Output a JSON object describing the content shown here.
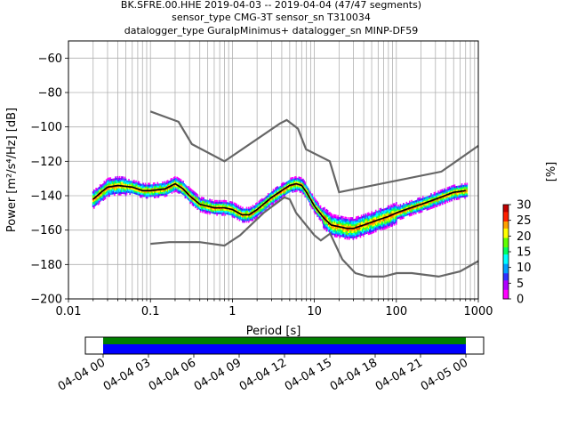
{
  "chart_data": {
    "type": "line",
    "title_lines": [
      "BK.SFRE.00.HHE   2019-04-03 -- 2019-04-04  (47/47 segments)",
      "sensor_type CMG-3T sensor_sn T310034",
      "datalogger_type GuralpMinimus+ datalogger_sn MINP-DF59"
    ],
    "xlabel": "Period [s]",
    "ylabel": "Power [m²/s⁴/Hz] [dB]",
    "x_scale": "log",
    "xlim": [
      0.01,
      1000
    ],
    "ylim": [
      -200,
      -50
    ],
    "x_ticks": [
      0.01,
      0.1,
      1,
      10,
      100,
      1000
    ],
    "x_tick_labels": [
      "0.01",
      "0.1",
      "1",
      "10",
      "100",
      "1000"
    ],
    "y_ticks": [
      -200,
      -180,
      -160,
      -140,
      -120,
      -100,
      -80,
      -60
    ],
    "y_tick_labels": [
      "−200",
      "−180",
      "−160",
      "−140",
      "−120",
      "−100",
      "−80",
      "−60"
    ],
    "grid": true,
    "colorbar": {
      "label": "[%]",
      "min": 0,
      "max": 30,
      "ticks": [
        0,
        5,
        10,
        15,
        20,
        25,
        30
      ],
      "tick_labels": [
        "0",
        "5",
        "10",
        "15",
        "20",
        "25",
        "30"
      ]
    },
    "nhnm": {
      "x": [
        0.1,
        0.22,
        0.32,
        0.8,
        3.8,
        4.6,
        6.3,
        7.9,
        15.4,
        20,
        354.8,
        1000
      ],
      "y": [
        -91,
        -97,
        -110,
        -120,
        -98,
        -96,
        -101,
        -113,
        -120,
        -138,
        -126,
        -111
      ]
    },
    "nlnm": {
      "x": [
        0.1,
        0.17,
        0.4,
        0.8,
        1.24,
        2.4,
        4.3,
        5,
        6,
        10,
        12,
        15.6,
        21.9,
        31.6,
        45,
        70,
        101,
        154,
        328,
        600,
        1000
      ],
      "y": [
        -168,
        -167,
        -167,
        -169,
        -163,
        -150,
        -141,
        -142,
        -150,
        -163,
        -166,
        -162,
        -177,
        -185,
        -187,
        -187,
        -185,
        -185,
        -187,
        -184,
        -178
      ]
    },
    "median": {
      "x": [
        0.02,
        0.025,
        0.03,
        0.04,
        0.06,
        0.08,
        0.1,
        0.15,
        0.2,
        0.25,
        0.3,
        0.4,
        0.6,
        0.8,
        1,
        1.3,
        1.6,
        2,
        3,
        4,
        5,
        6,
        7,
        8,
        10,
        13,
        16,
        20,
        25,
        30,
        40,
        60,
        80,
        100,
        150,
        200,
        300,
        500,
        700
      ],
      "y": [
        -142,
        -138,
        -135,
        -134,
        -135,
        -137,
        -137,
        -136,
        -133,
        -136,
        -140,
        -145,
        -147,
        -147,
        -148,
        -151,
        -151,
        -148,
        -141,
        -137,
        -134,
        -133,
        -134,
        -138,
        -146,
        -153,
        -157,
        -158,
        -159,
        -159,
        -157,
        -154,
        -152,
        -150,
        -147,
        -145,
        -142,
        -138,
        -137
      ]
    },
    "time_axis": {
      "tick_labels": [
        "04-04 00",
        "04-04 03",
        "04-04 06",
        "04-04 09",
        "04-04 12",
        "04-04 15",
        "04-04 18",
        "04-04 21",
        "04-05 00"
      ],
      "coverage_color": "#0000ff",
      "data_color": "#008000"
    }
  },
  "colors": {
    "noise_model": "#666666",
    "median": "#000000",
    "grid": "#b0b0b0"
  }
}
